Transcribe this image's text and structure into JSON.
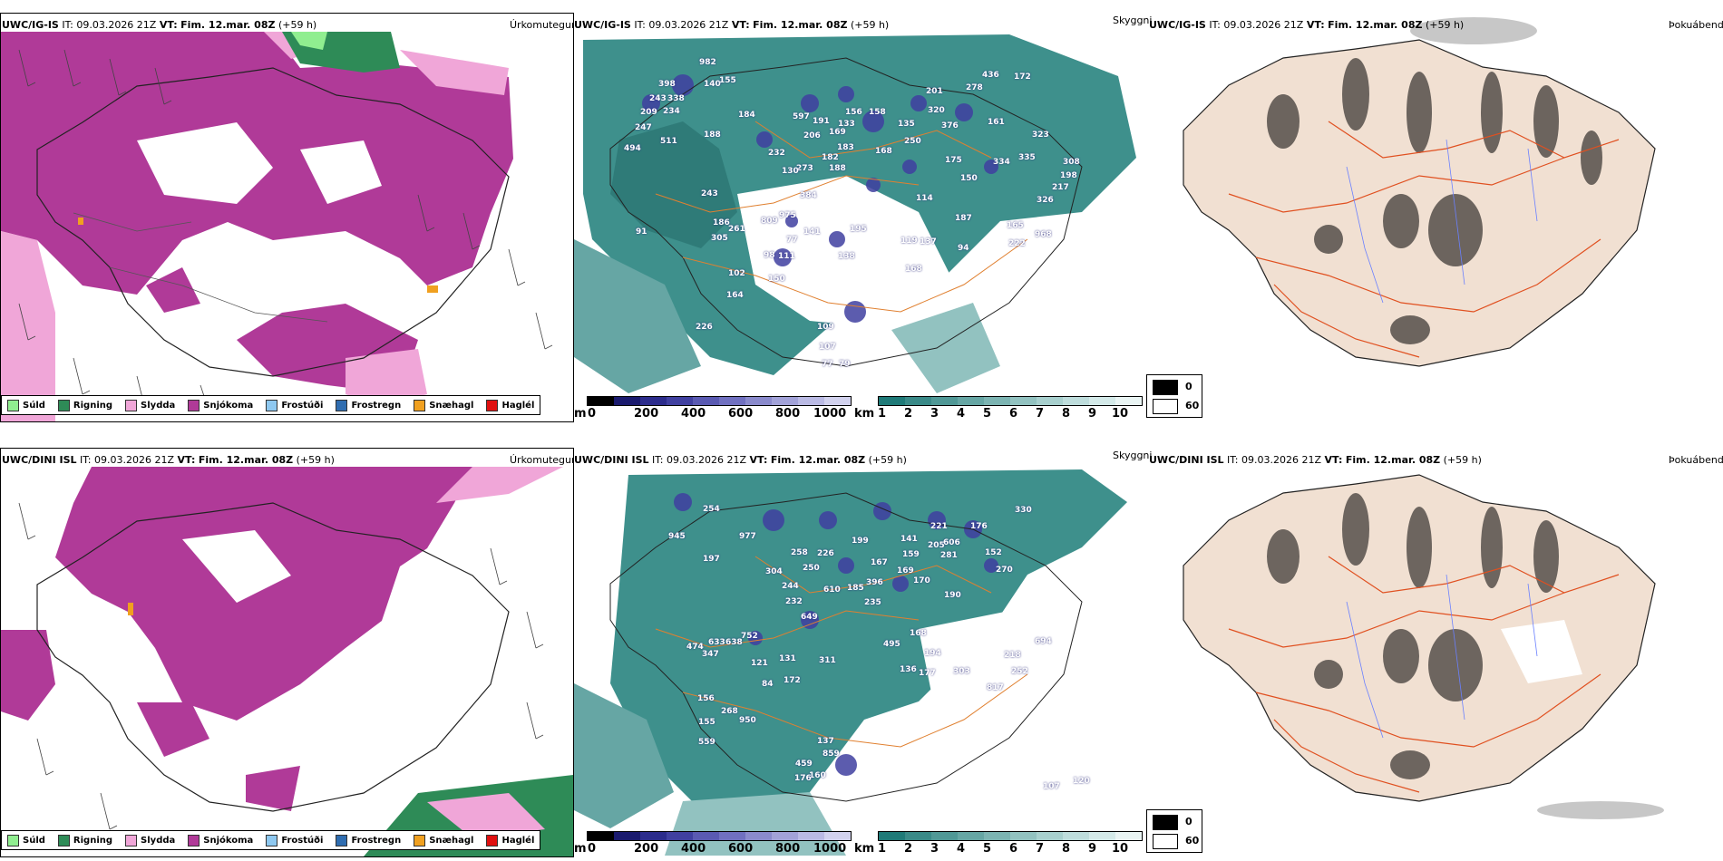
{
  "rows": [
    {
      "model": "UWC/IG-IS",
      "it_label": "IT:",
      "it_value": "09.03.2026 21Z",
      "vt_label": "VT:",
      "vt_value": "Fim. 12.mar. 08Z",
      "lead": "(+59 h)"
    },
    {
      "model": "UWC/DINI ISL",
      "it_label": "IT:",
      "it_value": "09.03.2026 21Z",
      "vt_label": "VT:",
      "vt_value": "Fim. 12.mar. 08Z",
      "lead": "(+59 h)"
    }
  ],
  "panels": {
    "precip": "Úrkomutegund",
    "cloud": "Skyggni",
    "fog": "Þokuábendi"
  },
  "precip_legend": [
    {
      "label": "Súld",
      "color": "#90ee90"
    },
    {
      "label": "Rigning",
      "color": "#2e8b57"
    },
    {
      "label": "Slydda",
      "color": "#f0a6d8"
    },
    {
      "label": "Snjókoma",
      "color": "#b03a98"
    },
    {
      "label": "Frostúði",
      "color": "#8ec8f0"
    },
    {
      "label": "Frostregn",
      "color": "#2f6db0"
    },
    {
      "label": "Snæhagl",
      "color": "#f0a020"
    },
    {
      "label": "Haglél",
      "color": "#e01010"
    }
  ],
  "cloudbase_scale": {
    "unit": "m",
    "ticks": [
      "0",
      "200",
      "400",
      "600",
      "800",
      "1000"
    ],
    "colors": [
      "#000000",
      "#1a1a6e",
      "#2c2c8c",
      "#4040a0",
      "#5a5ab2",
      "#7070c0",
      "#8a8acc",
      "#a2a2d8",
      "#babae4",
      "#d2d2ee"
    ]
  },
  "vis_scale": {
    "unit": "km",
    "ticks": [
      "1",
      "2",
      "3",
      "4",
      "5",
      "6",
      "7",
      "8",
      "9",
      "10"
    ],
    "colors": [
      "#1f7a78",
      "#3a8a88",
      "#509896",
      "#66a6a4",
      "#7cb4b2",
      "#92c2c0",
      "#a8d0ce",
      "#bedddc",
      "#d4eae9",
      "#eaf5f4"
    ]
  },
  "fog_key": {
    "high": "0",
    "low": "60"
  },
  "colors": {
    "snow": "#b03a98",
    "sleet": "#f0a6d8",
    "rain": "#2e8b57",
    "drizzle": "#90ee90",
    "teal": "#3e908c",
    "land_fog": "#f1e0d2",
    "roads": "#e05020",
    "rivers": "#6a80ff"
  },
  "labels_top": [
    "982",
    "140",
    "155",
    "398",
    "243",
    "338",
    "209",
    "234",
    "247",
    "511",
    "494",
    "184",
    "188",
    "191",
    "597",
    "206",
    "169",
    "156",
    "158",
    "201",
    "320",
    "278",
    "436",
    "172",
    "135",
    "133",
    "250",
    "183",
    "182",
    "168",
    "232",
    "273",
    "130",
    "188",
    "376",
    "161",
    "323",
    "308",
    "198",
    "175",
    "150",
    "334",
    "335",
    "217",
    "326",
    "114",
    "187",
    "165",
    "968",
    "222",
    "195",
    "141",
    "119",
    "137",
    "94",
    "168",
    "138",
    "77",
    "111",
    "98",
    "186",
    "261",
    "305",
    "91",
    "150",
    "164",
    "102",
    "226",
    "109",
    "107",
    "77",
    "79",
    "809",
    "975",
    "384",
    "243"
  ],
  "labels_bottom": [
    "254",
    "977",
    "945",
    "197",
    "304",
    "244",
    "232",
    "649",
    "610",
    "185",
    "396",
    "235",
    "167",
    "169",
    "159",
    "141",
    "221",
    "205",
    "176",
    "606",
    "281",
    "330",
    "152",
    "270",
    "170",
    "190",
    "168",
    "136",
    "194",
    "177",
    "303",
    "218",
    "252",
    "817",
    "694",
    "474",
    "633",
    "638",
    "347",
    "752",
    "121",
    "131",
    "311",
    "172",
    "84",
    "156",
    "268",
    "950",
    "155",
    "559",
    "137",
    "859",
    "459",
    "160",
    "176",
    "107",
    "120",
    "495",
    "250",
    "258",
    "226",
    "199"
  ]
}
